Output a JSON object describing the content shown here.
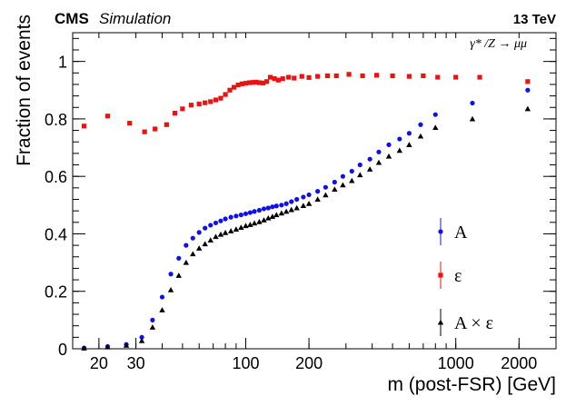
{
  "header": {
    "experiment": "CMS",
    "label": "Simulation",
    "energy": "13 TeV"
  },
  "process_label": "γ* /Z → μμ",
  "chart_data": {
    "type": "scatter",
    "title": "",
    "xlabel": "m (post-FSR) [GeV]",
    "ylabel": "Fraction of events",
    "xscale": "log",
    "xlim": [
      15,
      3000
    ],
    "ylim": [
      0,
      1.1
    ],
    "grid": false,
    "legend_position": "bottom-right",
    "x_ticks": [
      {
        "value": 20,
        "label": "20"
      },
      {
        "value": 30,
        "label": "30"
      },
      {
        "value": 100,
        "label": "100"
      },
      {
        "value": 200,
        "label": "200"
      },
      {
        "value": 1000,
        "label": "1000"
      },
      {
        "value": 2000,
        "label": "2000"
      }
    ],
    "y_ticks": [
      {
        "value": 0,
        "label": "0"
      },
      {
        "value": 0.2,
        "label": "0.2"
      },
      {
        "value": 0.4,
        "label": "0.4"
      },
      {
        "value": 0.6,
        "label": "0.6"
      },
      {
        "value": 0.8,
        "label": "0.8"
      },
      {
        "value": 1,
        "label": "1"
      }
    ],
    "series": [
      {
        "name": "ε",
        "color": "#ee1111",
        "marker": "square",
        "points": [
          [
            17,
            0.775
          ],
          [
            22,
            0.81
          ],
          [
            28,
            0.785
          ],
          [
            33,
            0.755
          ],
          [
            37,
            0.765
          ],
          [
            42,
            0.78
          ],
          [
            46,
            0.82
          ],
          [
            50,
            0.835
          ],
          [
            55,
            0.848
          ],
          [
            60,
            0.852
          ],
          [
            64,
            0.856
          ],
          [
            68,
            0.86
          ],
          [
            72,
            0.866
          ],
          [
            76,
            0.872
          ],
          [
            80,
            0.885
          ],
          [
            84,
            0.9
          ],
          [
            88,
            0.91
          ],
          [
            92,
            0.918
          ],
          [
            96,
            0.922
          ],
          [
            100,
            0.924
          ],
          [
            104,
            0.926
          ],
          [
            108,
            0.927
          ],
          [
            112,
            0.928
          ],
          [
            116,
            0.926
          ],
          [
            121,
            0.925
          ],
          [
            126,
            0.93
          ],
          [
            131,
            0.945
          ],
          [
            137,
            0.94
          ],
          [
            143,
            0.935
          ],
          [
            150,
            0.94
          ],
          [
            160,
            0.945
          ],
          [
            170,
            0.942
          ],
          [
            185,
            0.948
          ],
          [
            200,
            0.944
          ],
          [
            220,
            0.948
          ],
          [
            245,
            0.95
          ],
          [
            270,
            0.95
          ],
          [
            310,
            0.955
          ],
          [
            360,
            0.95
          ],
          [
            420,
            0.952
          ],
          [
            500,
            0.95
          ],
          [
            600,
            0.948
          ],
          [
            700,
            0.95
          ],
          [
            820,
            0.945
          ],
          [
            1000,
            0.945
          ],
          [
            1300,
            0.945
          ],
          [
            2200,
            0.93
          ]
        ]
      },
      {
        "name": "A",
        "color": "#1010ee",
        "marker": "circle",
        "points": [
          [
            17,
            0.003
          ],
          [
            22,
            0.008
          ],
          [
            27,
            0.015
          ],
          [
            32,
            0.04
          ],
          [
            36,
            0.1
          ],
          [
            40,
            0.18
          ],
          [
            44,
            0.26
          ],
          [
            48,
            0.315
          ],
          [
            52,
            0.36
          ],
          [
            56,
            0.385
          ],
          [
            60,
            0.405
          ],
          [
            64,
            0.42
          ],
          [
            68,
            0.43
          ],
          [
            72,
            0.438
          ],
          [
            76,
            0.445
          ],
          [
            80,
            0.452
          ],
          [
            85,
            0.458
          ],
          [
            90,
            0.462
          ],
          [
            95,
            0.466
          ],
          [
            100,
            0.47
          ],
          [
            105,
            0.474
          ],
          [
            110,
            0.478
          ],
          [
            116,
            0.482
          ],
          [
            122,
            0.487
          ],
          [
            128,
            0.49
          ],
          [
            134,
            0.494
          ],
          [
            140,
            0.497
          ],
          [
            148,
            0.5
          ],
          [
            156,
            0.505
          ],
          [
            165,
            0.512
          ],
          [
            175,
            0.52
          ],
          [
            188,
            0.528
          ],
          [
            200,
            0.536
          ],
          [
            220,
            0.548
          ],
          [
            240,
            0.562
          ],
          [
            265,
            0.58
          ],
          [
            290,
            0.6
          ],
          [
            320,
            0.618
          ],
          [
            350,
            0.64
          ],
          [
            390,
            0.66
          ],
          [
            430,
            0.685
          ],
          [
            480,
            0.71
          ],
          [
            540,
            0.73
          ],
          [
            600,
            0.75
          ],
          [
            680,
            0.78
          ],
          [
            800,
            0.815
          ],
          [
            1200,
            0.855
          ],
          [
            2200,
            0.9
          ]
        ]
      },
      {
        "name": "A × ε",
        "color": "#000000",
        "marker": "triangle",
        "points": [
          [
            17,
            0.002
          ],
          [
            22,
            0.006
          ],
          [
            27,
            0.012
          ],
          [
            32,
            0.028
          ],
          [
            36,
            0.075
          ],
          [
            40,
            0.135
          ],
          [
            44,
            0.205
          ],
          [
            48,
            0.255
          ],
          [
            52,
            0.3
          ],
          [
            56,
            0.33
          ],
          [
            60,
            0.35
          ],
          [
            64,
            0.365
          ],
          [
            68,
            0.378
          ],
          [
            72,
            0.39
          ],
          [
            76,
            0.398
          ],
          [
            80,
            0.404
          ],
          [
            85,
            0.41
          ],
          [
            90,
            0.416
          ],
          [
            95,
            0.422
          ],
          [
            100,
            0.428
          ],
          [
            105,
            0.432
          ],
          [
            110,
            0.437
          ],
          [
            116,
            0.442
          ],
          [
            122,
            0.448
          ],
          [
            128,
            0.455
          ],
          [
            134,
            0.46
          ],
          [
            140,
            0.466
          ],
          [
            148,
            0.472
          ],
          [
            156,
            0.478
          ],
          [
            165,
            0.484
          ],
          [
            175,
            0.49
          ],
          [
            188,
            0.498
          ],
          [
            200,
            0.505
          ],
          [
            220,
            0.52
          ],
          [
            240,
            0.535
          ],
          [
            265,
            0.555
          ],
          [
            290,
            0.57
          ],
          [
            320,
            0.585
          ],
          [
            350,
            0.605
          ],
          [
            390,
            0.625
          ],
          [
            430,
            0.648
          ],
          [
            480,
            0.67
          ],
          [
            540,
            0.69
          ],
          [
            600,
            0.71
          ],
          [
            680,
            0.74
          ],
          [
            800,
            0.77
          ],
          [
            1200,
            0.8
          ],
          [
            2200,
            0.835
          ]
        ]
      }
    ]
  }
}
